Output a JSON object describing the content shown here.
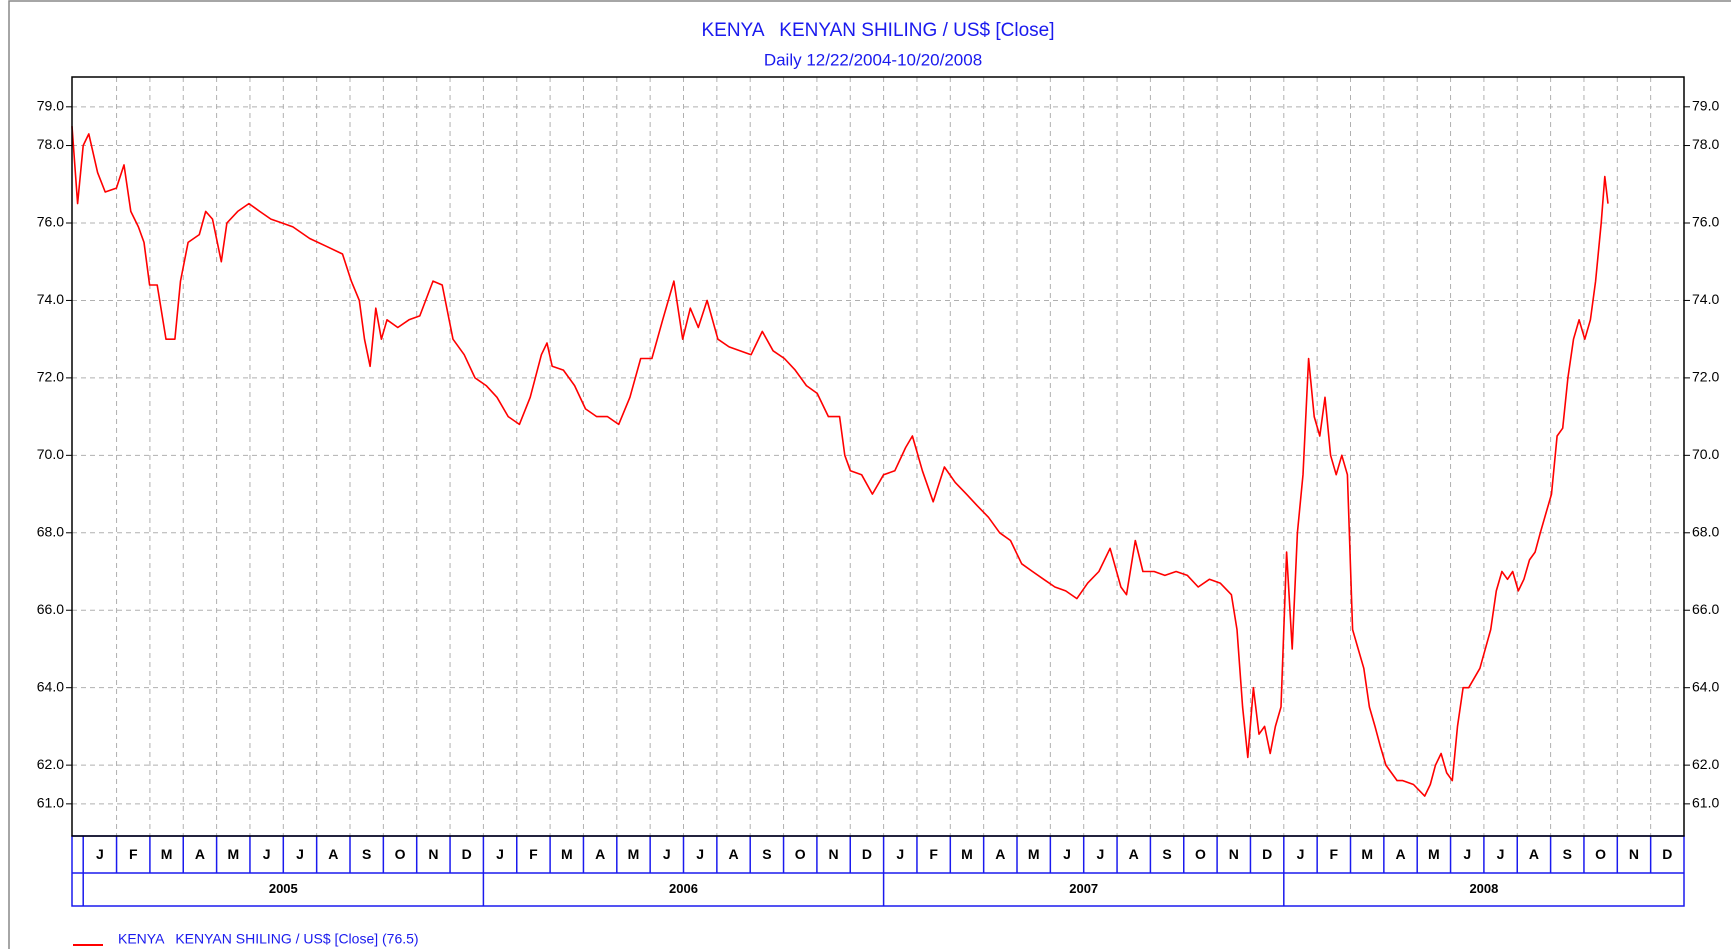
{
  "chart_data": {
    "type": "line",
    "title": "KENYA   KENYAN SHILING / US$ [Close]",
    "subtitle": "Daily 12/22/2004-10/20/2008",
    "xlim": [
      2004.972,
      2009.0
    ],
    "ylim": [
      60.17,
      79.77
    ],
    "yticks": [
      {
        "value": 79,
        "label": "79.0"
      },
      {
        "value": 78,
        "label": "78.0"
      },
      {
        "value": 76,
        "label": "76.0"
      },
      {
        "value": 74,
        "label": "74.0"
      },
      {
        "value": 72,
        "label": "72.0"
      },
      {
        "value": 70,
        "label": "70.0"
      },
      {
        "value": 68,
        "label": "68.0"
      },
      {
        "value": 66,
        "label": "66.0"
      },
      {
        "value": 64,
        "label": "64.0"
      },
      {
        "value": 62,
        "label": "62.0"
      },
      {
        "value": 61,
        "label": "61.0"
      }
    ],
    "grid": true,
    "month_labels": [
      "J",
      "F",
      "M",
      "A",
      "M",
      "J",
      "J",
      "A",
      "S",
      "O",
      "N",
      "D",
      "J",
      "F",
      "M",
      "A",
      "M",
      "J",
      "J",
      "A",
      "S",
      "O",
      "N",
      "D",
      "J",
      "F",
      "M",
      "A",
      "M",
      "J",
      "J",
      "A",
      "S",
      "O",
      "N",
      "D",
      "J",
      "F",
      "M",
      "A",
      "M",
      "J",
      "J",
      "A",
      "S",
      "O",
      "N",
      "D"
    ],
    "year_labels": [
      "2005",
      "2006",
      "2007",
      "2008"
    ],
    "x": [
      2004.972,
      2004.986,
      2005.0,
      2005.014,
      2005.036,
      2005.055,
      2005.083,
      2005.102,
      2005.119,
      2005.138,
      2005.152,
      2005.166,
      2005.185,
      2005.207,
      2005.229,
      2005.243,
      2005.262,
      2005.29,
      2005.306,
      2005.323,
      2005.345,
      2005.359,
      2005.386,
      2005.414,
      2005.441,
      2005.469,
      2005.497,
      2005.524,
      2005.566,
      2005.607,
      2005.648,
      2005.67,
      2005.69,
      2005.703,
      2005.717,
      2005.731,
      2005.745,
      2005.759,
      2005.786,
      2005.814,
      2005.841,
      2005.874,
      2005.897,
      2005.924,
      2005.952,
      2005.979,
      2006.007,
      2006.034,
      2006.062,
      2006.09,
      2006.117,
      2006.145,
      2006.159,
      2006.172,
      2006.2,
      2006.228,
      2006.255,
      2006.283,
      2006.31,
      2006.338,
      2006.366,
      2006.393,
      2006.421,
      2006.448,
      2006.476,
      2006.498,
      2006.517,
      2006.537,
      2006.559,
      2006.586,
      2006.614,
      2006.641,
      2006.669,
      2006.697,
      2006.724,
      2006.752,
      2006.779,
      2006.807,
      2006.834,
      2006.862,
      2006.89,
      2006.903,
      2006.917,
      2006.945,
      2006.972,
      2007.0,
      2007.028,
      2007.055,
      2007.072,
      2007.097,
      2007.124,
      2007.152,
      2007.179,
      2007.207,
      2007.234,
      2007.262,
      2007.29,
      2007.317,
      2007.345,
      2007.372,
      2007.4,
      2007.428,
      2007.455,
      2007.483,
      2007.51,
      2007.538,
      2007.566,
      2007.593,
      2007.607,
      2007.629,
      2007.648,
      2007.676,
      2007.703,
      2007.731,
      2007.759,
      2007.786,
      2007.814,
      2007.841,
      2007.869,
      2007.883,
      2007.897,
      2007.91,
      2007.924,
      2007.938,
      2007.952,
      2007.966,
      2007.979,
      2007.993,
      2008.007,
      2008.021,
      2008.034,
      2008.048,
      2008.062,
      2008.076,
      2008.09,
      2008.103,
      2008.117,
      2008.131,
      2008.145,
      2008.159,
      2008.172,
      2008.186,
      2008.2,
      2008.214,
      2008.228,
      2008.241,
      2008.255,
      2008.269,
      2008.283,
      2008.297,
      2008.324,
      2008.352,
      2008.366,
      2008.379,
      2008.393,
      2008.407,
      2008.421,
      2008.434,
      2008.448,
      2008.462,
      2008.49,
      2008.517,
      2008.531,
      2008.545,
      2008.559,
      2008.572,
      2008.586,
      2008.6,
      2008.614,
      2008.628,
      2008.641,
      2008.655,
      2008.669,
      2008.683,
      2008.697,
      2008.71,
      2008.724,
      2008.738,
      2008.752,
      2008.766,
      2008.779,
      2008.793,
      2008.802,
      2008.81
    ],
    "series": [
      {
        "name": "KENYA   KENYAN SHILING / US$ [Close] (76.5)",
        "color": "#ff0000",
        "values": [
          78.5,
          76.5,
          78.0,
          78.3,
          77.3,
          76.8,
          76.9,
          77.5,
          76.3,
          75.9,
          75.5,
          74.4,
          74.4,
          73.0,
          73.0,
          74.5,
          75.5,
          75.7,
          76.3,
          76.1,
          75.0,
          76.0,
          76.3,
          76.5,
          76.3,
          76.1,
          76.0,
          75.9,
          75.6,
          75.4,
          75.2,
          74.5,
          74.0,
          73.0,
          72.3,
          73.8,
          73.0,
          73.5,
          73.3,
          73.5,
          73.6,
          74.5,
          74.4,
          73.0,
          72.6,
          72.0,
          71.8,
          71.5,
          71.0,
          70.8,
          71.5,
          72.6,
          72.9,
          72.3,
          72.2,
          71.8,
          71.2,
          71.0,
          71.0,
          70.8,
          71.5,
          72.5,
          72.5,
          73.5,
          74.5,
          73.0,
          73.8,
          73.3,
          74.0,
          73.0,
          72.8,
          72.7,
          72.6,
          73.2,
          72.7,
          72.5,
          72.2,
          71.8,
          71.6,
          71.0,
          71.0,
          70.0,
          69.6,
          69.5,
          69.0,
          69.5,
          69.6,
          70.2,
          70.5,
          69.6,
          68.8,
          69.7,
          69.3,
          69.0,
          68.7,
          68.4,
          68.0,
          67.8,
          67.2,
          67.0,
          66.8,
          66.6,
          66.5,
          66.3,
          66.7,
          67.0,
          67.6,
          66.6,
          66.4,
          67.8,
          67.0,
          67.0,
          66.9,
          67.0,
          66.9,
          66.6,
          66.8,
          66.7,
          66.4,
          65.5,
          63.5,
          62.2,
          64.0,
          62.8,
          63.0,
          62.3,
          63.0,
          63.5,
          67.5,
          65.0,
          68.0,
          69.5,
          72.5,
          71.0,
          70.5,
          71.5,
          70.0,
          69.5,
          70.0,
          69.5,
          65.5,
          65.0,
          64.5,
          63.5,
          63.0,
          62.5,
          62.0,
          61.8,
          61.6,
          61.6,
          61.5,
          61.2,
          61.5,
          62.0,
          62.3,
          61.8,
          61.6,
          63.0,
          64.0,
          64.0,
          64.5,
          65.5,
          66.5,
          67.0,
          66.8,
          67.0,
          66.5,
          66.8,
          67.3,
          67.5,
          68.0,
          68.5,
          69.0,
          70.5,
          70.7,
          72.0,
          73.0,
          73.5,
          73.0,
          73.5,
          74.5,
          76.0,
          77.2,
          76.5
        ]
      }
    ]
  }
}
